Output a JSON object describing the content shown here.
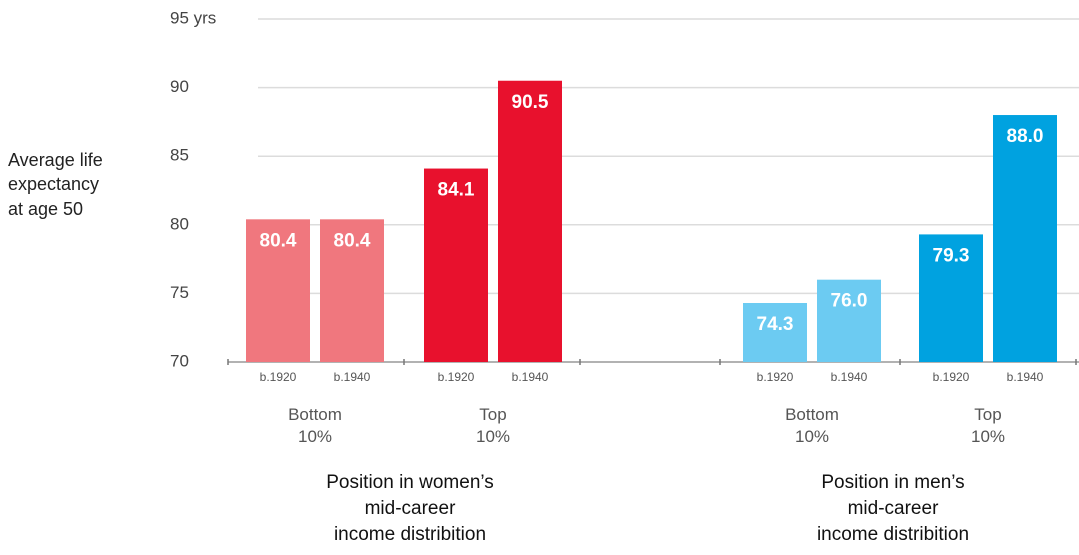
{
  "chart_data": {
    "type": "bar",
    "ylabel": "Average life\nexpectancy\nat age 50",
    "ylim": [
      70,
      95
    ],
    "yticks": [
      70,
      75,
      80,
      85,
      90,
      {
        "value": 95,
        "label": "95 yrs"
      }
    ],
    "grid": true,
    "panels": [
      {
        "title": "Position in women’s\nmid-career\nincome distribition",
        "groups": [
          {
            "label": "Bottom\n10%",
            "cohorts": [
              "b.1920",
              "b.1940"
            ],
            "values": [
              80.4,
              80.4
            ],
            "value_labels": [
              "80.4",
              "80.4"
            ],
            "color": "#f0777e"
          },
          {
            "label": "Top\n10%",
            "cohorts": [
              "b.1920",
              "b.1940"
            ],
            "values": [
              84.1,
              90.5
            ],
            "value_labels": [
              "84.1",
              "90.5"
            ],
            "color": "#e8112d"
          }
        ]
      },
      {
        "title": "Position in men’s\nmid-career\nincome distribition",
        "groups": [
          {
            "label": "Bottom\n10%",
            "cohorts": [
              "b.1920",
              "b.1940"
            ],
            "values": [
              74.3,
              76.0
            ],
            "value_labels": [
              "74.3",
              "76.0"
            ],
            "color": "#6ccbf2"
          },
          {
            "label": "Top\n10%",
            "cohorts": [
              "b.1920",
              "b.1940"
            ],
            "values": [
              79.3,
              88.0
            ],
            "value_labels": [
              "79.3",
              "88.0"
            ],
            "color": "#00a2e0"
          }
        ]
      }
    ]
  }
}
